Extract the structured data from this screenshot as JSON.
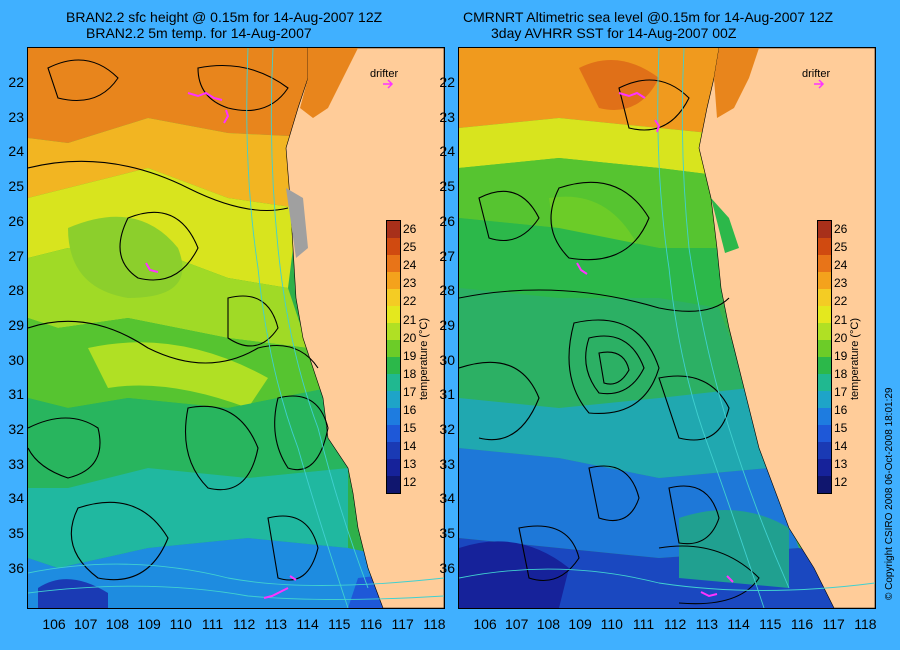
{
  "left_panel": {
    "title_line1": "BRAN2.2 sfc height @ 0.15m for 14-Aug-2007 12Z",
    "title_line2": "BRAN2.2 5m temp. for 14-Aug-2007"
  },
  "right_panel": {
    "title_line1": "CMRNRT Altimetric sea level  @0.15m  for 14-Aug-2007 12Z",
    "title_line2": "3day AVHRR SST for 14-Aug-2007 00Z"
  },
  "latitude_ticks": [
    "22",
    "23",
    "24",
    "25",
    "26",
    "27",
    "28",
    "29",
    "30",
    "31",
    "32",
    "33",
    "34",
    "35",
    "36"
  ],
  "longitude_ticks": [
    "106",
    "107",
    "108",
    "109",
    "110",
    "111",
    "112",
    "113",
    "114",
    "115",
    "116",
    "117",
    "118"
  ],
  "legend": {
    "drifter_label": "drifter",
    "drifter_color": "#ff33ff"
  },
  "colorbar": {
    "title": "temperature (°C)",
    "ticks": [
      "26",
      "25",
      "24",
      "23",
      "22",
      "21",
      "20",
      "19",
      "18",
      "17",
      "16",
      "15",
      "14",
      "13",
      "12"
    ],
    "colors": [
      "#a8301a",
      "#d04a10",
      "#e87418",
      "#f4a21c",
      "#f4cc24",
      "#e4e81e",
      "#b0e024",
      "#6ccc28",
      "#2cb84a",
      "#20b890",
      "#1ea4c8",
      "#1e7ce0",
      "#1e58d8",
      "#1a3ab4",
      "#16229a",
      "#10166e"
    ]
  },
  "copyright": "© Copyright CSIRO 2008     06-Oct-2008 18:01:29",
  "colors": {
    "background": "#40b0ff",
    "land": "#ffcc99",
    "contour": "#000000",
    "isobath": "#40d0d0"
  }
}
